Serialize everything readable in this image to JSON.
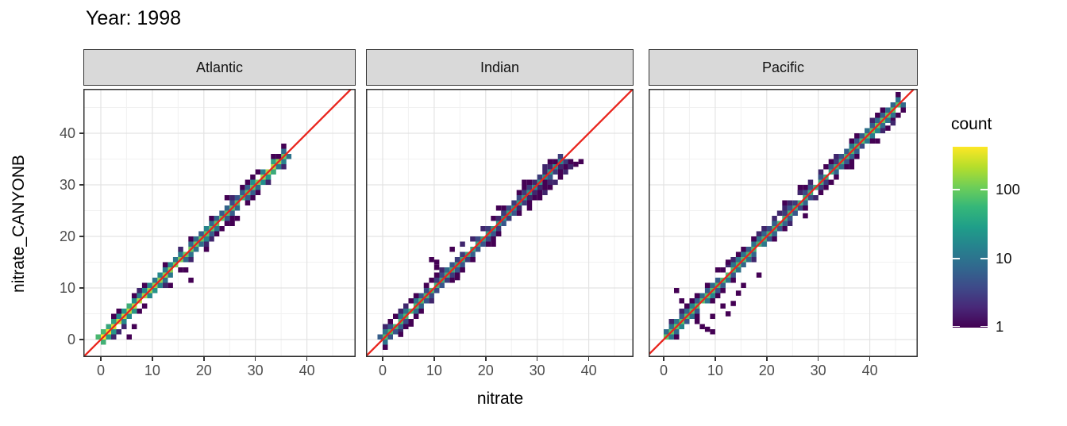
{
  "chart_data": {
    "type": "bin2d",
    "title": "Year: 1998",
    "xlabel": "nitrate",
    "ylabel": "nitrate_CANYONB",
    "x_ticks": [
      0,
      10,
      20,
      30,
      40
    ],
    "y_ticks": [
      0,
      10,
      20,
      30,
      40
    ],
    "minor_gridlines": [
      5,
      15,
      25,
      35,
      45
    ],
    "axis_range": [
      -3.4,
      48.6
    ],
    "binwidth": 1,
    "identity_line": {
      "equation": "y = x",
      "color": "#e9251d"
    },
    "legend": {
      "title": "count",
      "ticks": [
        100,
        10,
        1
      ],
      "scale": "log10",
      "max": 420
    },
    "colors": {
      "strip_fill": "#d9d9d9",
      "panel_border": "#333333",
      "grid_major": "#e3e3e3",
      "grid_minor": "#f1f1f1",
      "tick_label": "#4d4d4d",
      "identity_line": "#e9251d",
      "viridis": [
        "#440154",
        "#3b528b",
        "#21918c",
        "#5ec962",
        "#fde725"
      ],
      "viridis_bar": [
        "#440154",
        "#482878",
        "#3e4a89",
        "#31688e",
        "#26828e",
        "#1f9e89",
        "#35b779",
        "#6ece58",
        "#b5de2b",
        "#fde725"
      ]
    },
    "facets": [
      {
        "label": "Atlantic",
        "seed": 7,
        "diagonal": {
          "from": 0,
          "to": 36
        },
        "density": {
          "a0": 300,
          "tau": 14,
          "base": 18,
          "noise": 16,
          "bumps": [
            [
              33,
              6,
              160
            ],
            [
              0.5,
              2,
              120
            ]
          ]
        },
        "band_p": 0.62,
        "ring2_p": 0.16,
        "outlier_bins": [
          [
            17.5,
            11.5,
            1
          ],
          [
            13.5,
            10.5,
            1
          ],
          [
            16.5,
            13.5,
            1
          ],
          [
            8.5,
            10.5,
            1
          ],
          [
            5.5,
            0.5,
            1
          ],
          [
            6.5,
            2.5,
            1
          ],
          [
            2.5,
            4.5,
            1
          ],
          [
            4.5,
            2.5,
            2
          ],
          [
            25.5,
            22.5,
            1
          ],
          [
            26.5,
            23.5,
            1
          ],
          [
            24.5,
            27.5,
            1
          ],
          [
            25.5,
            27.5,
            2
          ],
          [
            23.5,
            21.5,
            1
          ],
          [
            20.5,
            17.5,
            1
          ],
          [
            28.5,
            30.5,
            1
          ],
          [
            34.5,
            35.5,
            1
          ],
          [
            12.5,
            14.5,
            1
          ],
          [
            7.5,
            9.5,
            2
          ]
        ]
      },
      {
        "label": "Indian",
        "seed": 13,
        "diagonal": {
          "from": 0,
          "to": 35
        },
        "density": {
          "a0": 50,
          "tau": 20,
          "base": 10,
          "noise": 10,
          "bumps": [
            [
              8,
              10,
              20
            ]
          ]
        },
        "band_p": 0.62,
        "ring2_p": 0.22,
        "outlier_bins": [
          [
            9.5,
            15.5,
            1
          ],
          [
            10.5,
            15.0,
            1
          ],
          [
            10.5,
            14.0,
            1
          ],
          [
            13.5,
            17.5,
            1
          ],
          [
            15.5,
            18.5,
            2
          ],
          [
            14.5,
            12.0,
            1
          ],
          [
            21.5,
            18.5,
            1
          ],
          [
            26.5,
            28.5,
            1
          ],
          [
            28.5,
            25.5,
            1
          ],
          [
            30.5,
            27.5,
            1
          ],
          [
            31.5,
            28.5,
            2
          ],
          [
            32.5,
            29.5,
            1
          ],
          [
            33.5,
            30.5,
            2
          ],
          [
            34.5,
            31.5,
            1
          ],
          [
            35.5,
            32.5,
            2
          ],
          [
            36.5,
            33.5,
            2
          ],
          [
            37.5,
            34.0,
            1
          ],
          [
            38.5,
            34.5,
            1
          ],
          [
            36.5,
            34.5,
            1
          ],
          [
            3.5,
            1.0,
            1
          ],
          [
            5.5,
            3.0,
            1
          ],
          [
            27.5,
            30.5,
            1
          ],
          [
            22.5,
            25.5,
            1
          ]
        ]
      },
      {
        "label": "Pacific",
        "seed": 21,
        "diagonal": {
          "from": 0,
          "to": 46
        },
        "density": {
          "a0": 80,
          "tau": 25,
          "base": 15,
          "noise": 12,
          "bumps": [
            [
              42,
              30,
              60
            ]
          ]
        },
        "band_p": 0.62,
        "ring2_p": 0.3,
        "outlier_bins": [
          [
            2.5,
            9.5,
            1
          ],
          [
            6.5,
            3.5,
            1
          ],
          [
            7.5,
            2.5,
            1
          ],
          [
            8.5,
            2.0,
            1
          ],
          [
            9.5,
            4.5,
            1
          ],
          [
            11.5,
            6.5,
            1
          ],
          [
            13.5,
            7.0,
            1
          ],
          [
            14.5,
            9.0,
            1
          ],
          [
            10.5,
            13.5,
            1
          ],
          [
            12.5,
            15.0,
            1
          ],
          [
            15.5,
            10.5,
            1
          ],
          [
            18.5,
            12.5,
            1
          ],
          [
            26.5,
            29.5,
            1
          ],
          [
            23.5,
            26.5,
            1
          ],
          [
            27.5,
            24.0,
            1
          ],
          [
            36.5,
            33.5,
            1
          ],
          [
            43.5,
            41.0,
            1
          ],
          [
            44.5,
            42.0,
            2
          ],
          [
            41.5,
            38.5,
            1
          ],
          [
            3.5,
            7.5,
            1
          ],
          [
            9.5,
            1.5,
            1
          ],
          [
            12.5,
            5.0,
            1
          ]
        ]
      }
    ]
  }
}
